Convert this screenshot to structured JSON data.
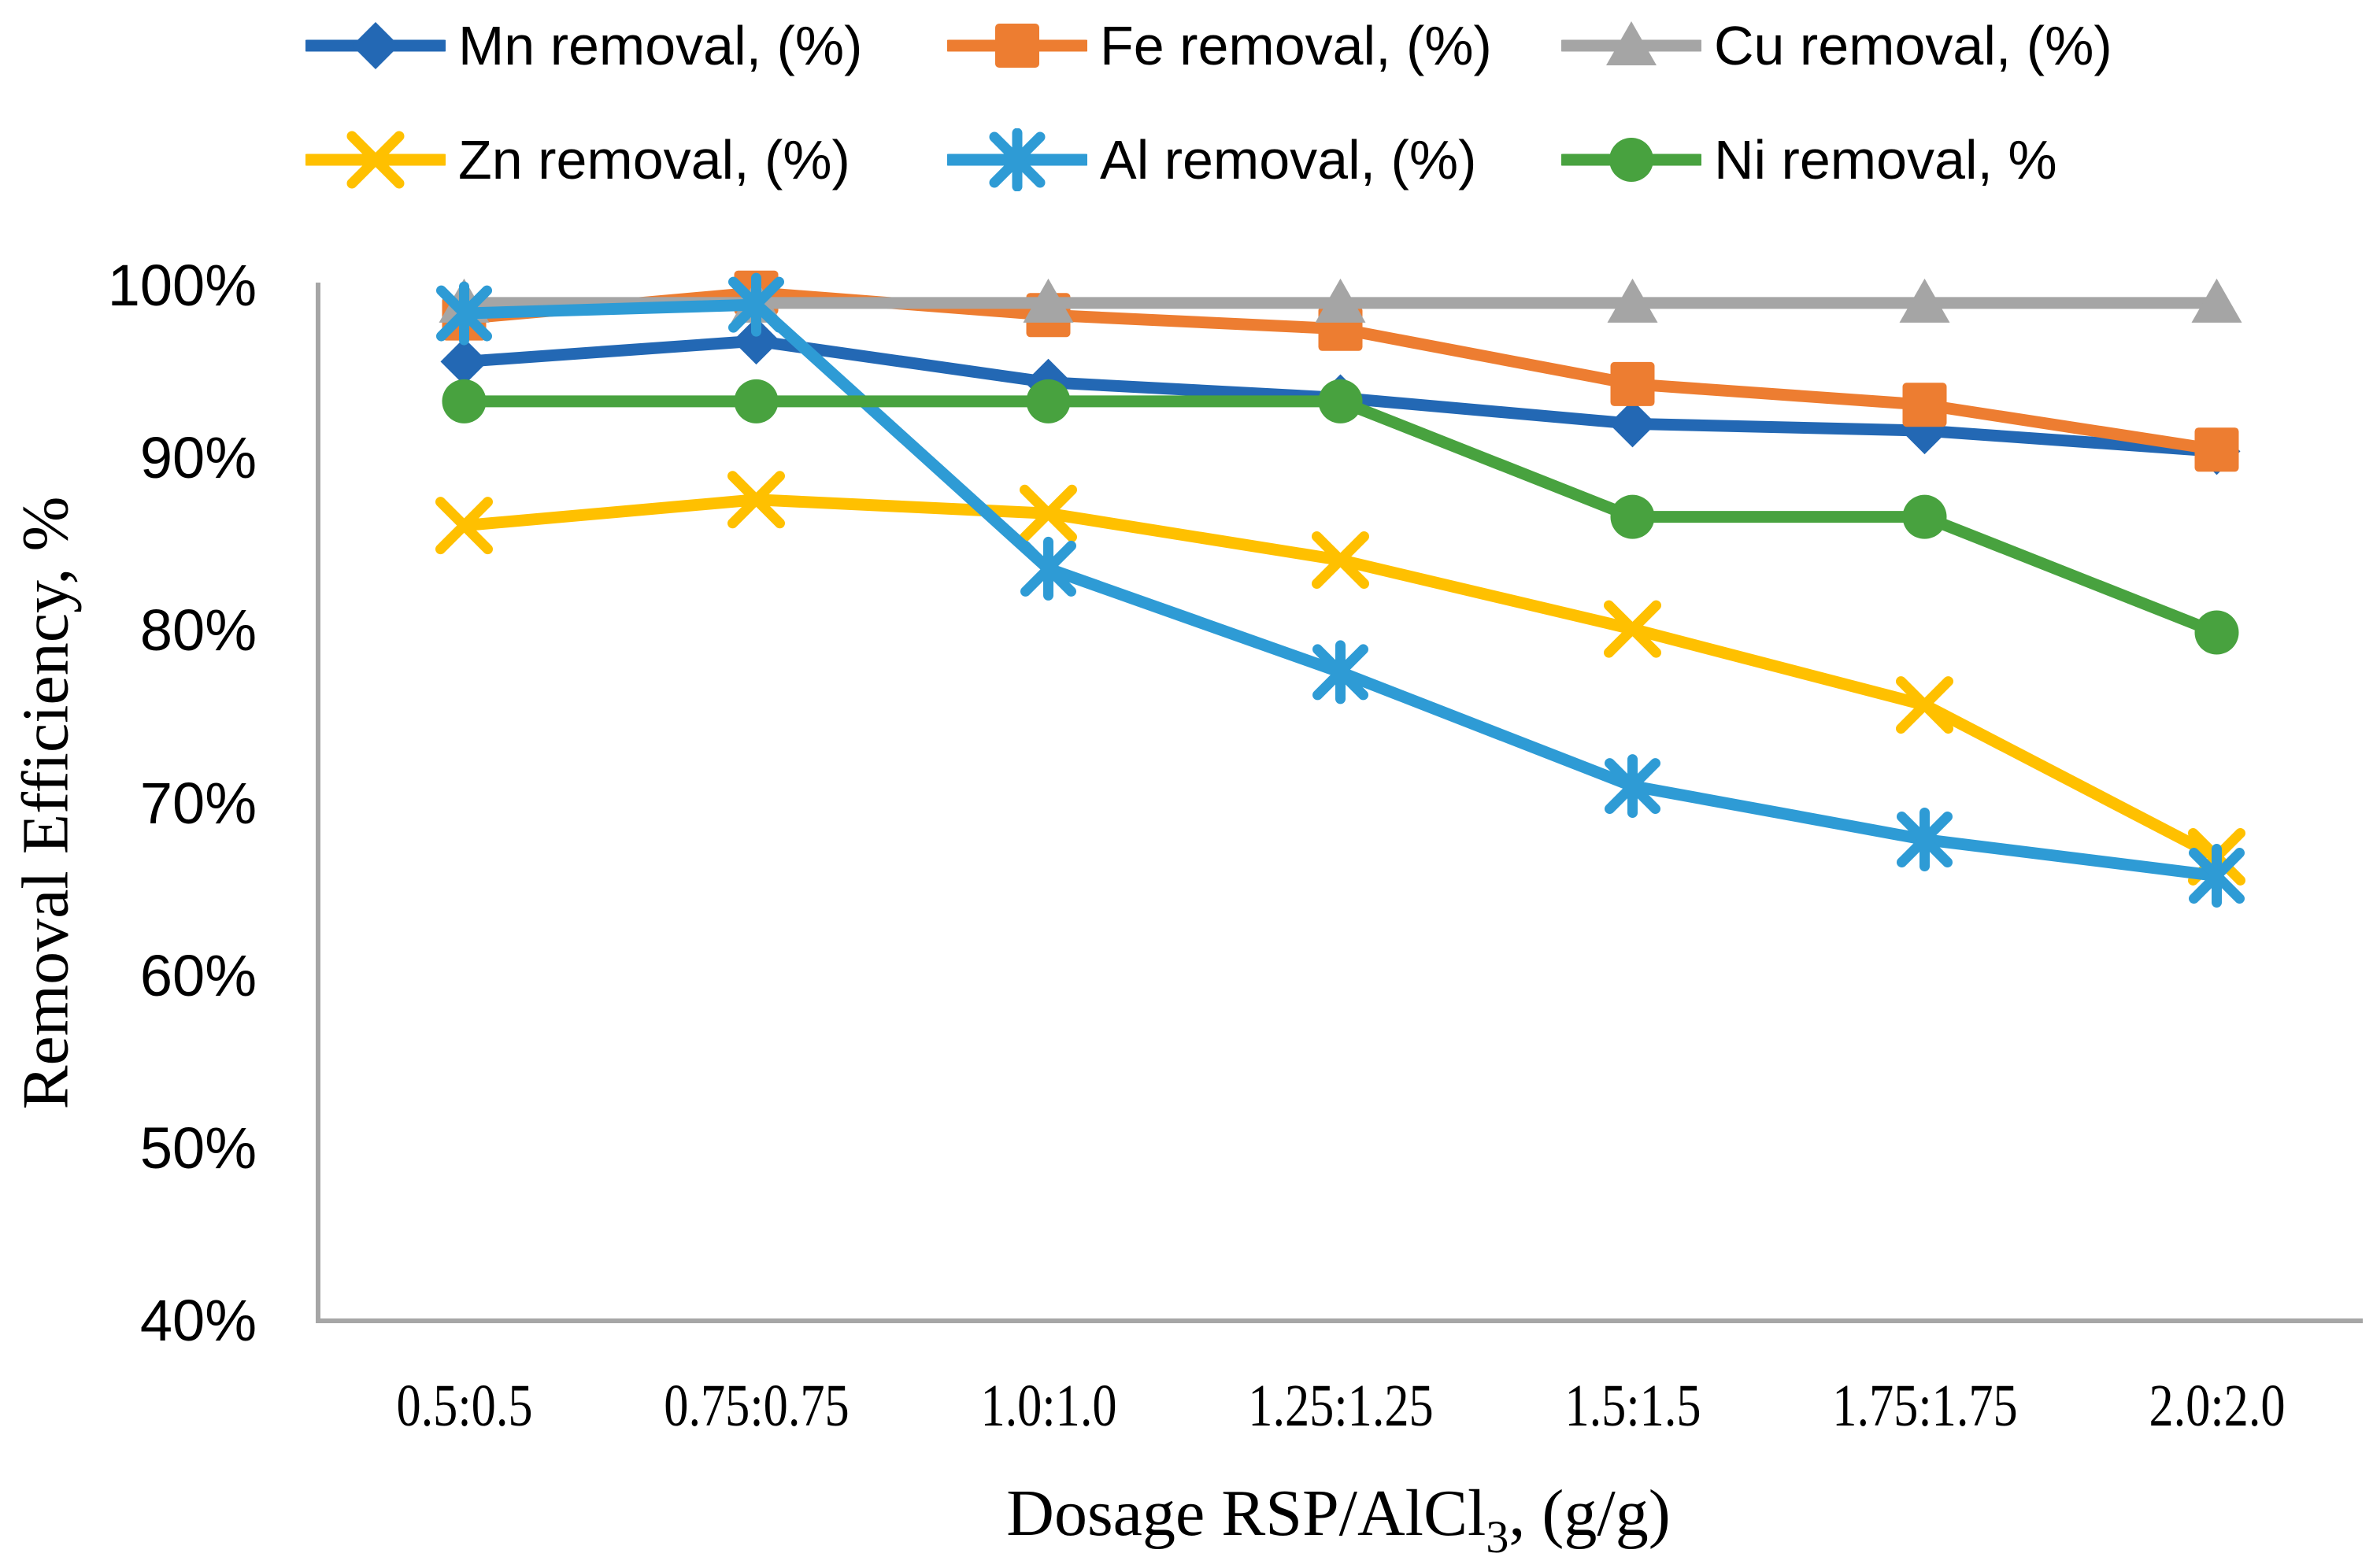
{
  "chart_data": {
    "type": "line",
    "title": "",
    "xlabel_main": "Dosage RSP/AlCl",
    "xlabel_sub": "3",
    "xlabel_tail": ", (g/g)",
    "ylabel": "Removal Efficiency, %",
    "categories": [
      "0.5:0.5",
      "0.75:0.75",
      "1.0:1.0",
      "1.25:1.25",
      "1.5:1.5",
      "1.75:1.75",
      "2.0:2.0"
    ],
    "ylim": [
      40,
      100
    ],
    "ytick_labels": [
      "100%",
      "90%",
      "80%",
      "70%",
      "60%",
      "50%",
      "40%"
    ],
    "ytick_values": [
      100,
      90,
      80,
      70,
      60,
      50,
      40
    ],
    "grid": false,
    "legend_position": "top",
    "axis_color": "#A6A6A6",
    "series": [
      {
        "name": "Mn removal, (%)",
        "marker": "diamond",
        "color": "#2368B4",
        "values": [
          95.6,
          96.8,
          94.4,
          93.5,
          92.0,
          91.6,
          90.4
        ]
      },
      {
        "name": "Fe removal, (%)",
        "marker": "square",
        "color": "#ED7D31",
        "values": [
          98.1,
          99.6,
          98.3,
          97.5,
          94.3,
          93.1,
          90.5
        ]
      },
      {
        "name": "Cu removal, (%)",
        "marker": "triangle",
        "color": "#A5A5A5",
        "values": [
          99.0,
          99.0,
          99.0,
          99.0,
          99.0,
          99.0,
          99.0
        ]
      },
      {
        "name": "Zn removal, (%)",
        "marker": "x",
        "color": "#FFC000",
        "values": [
          86.1,
          87.6,
          86.8,
          84.1,
          80.1,
          75.7,
          66.9
        ]
      },
      {
        "name": "Al removal, (%)",
        "marker": "asterisk",
        "color": "#2E9BD5",
        "values": [
          98.4,
          98.9,
          83.6,
          77.6,
          71.0,
          67.9,
          65.8
        ]
      },
      {
        "name": "Ni removal, %",
        "marker": "circle",
        "color": "#48A23F",
        "values": [
          93.3,
          93.3,
          93.3,
          93.3,
          86.6,
          86.6,
          79.9
        ]
      }
    ]
  }
}
